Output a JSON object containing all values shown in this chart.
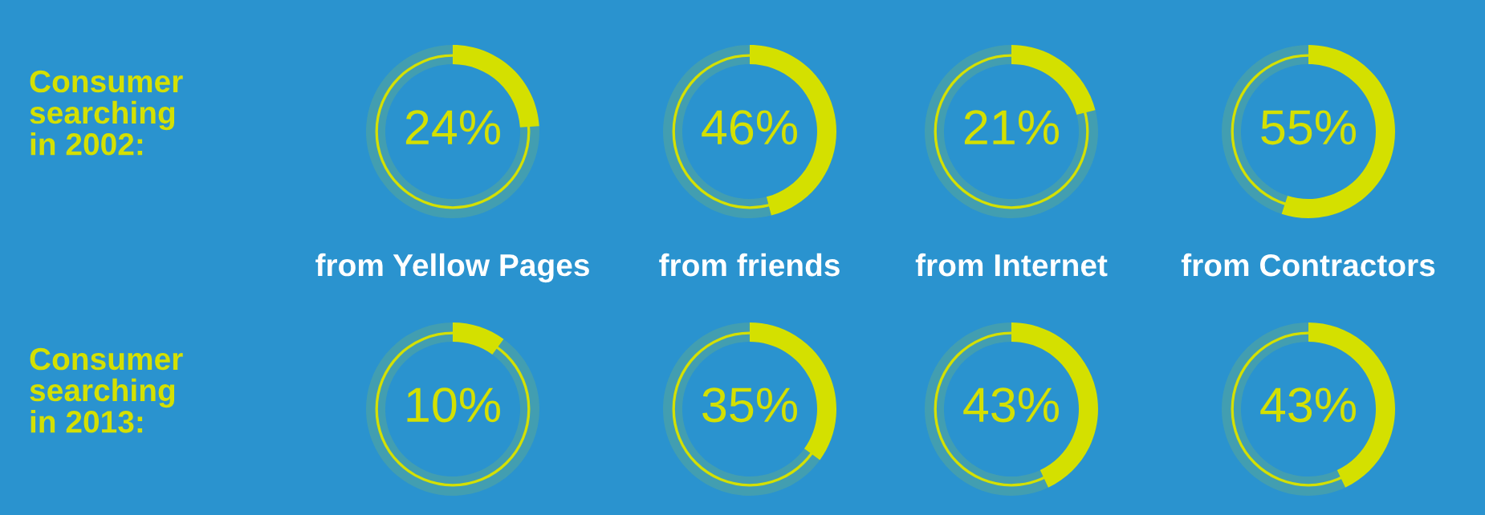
{
  "chart_data": [
    {
      "type": "donut",
      "ylabel": "Consumer\nsearching\nin 2002:",
      "xlabel": "from Yellow Pages",
      "categories": [
        null,
        null
      ],
      "values": [
        24,
        76
      ],
      "colors": [
        "#d4e000",
        "#d4e000"
      ],
      "annotations": [
        "24%"
      ]
    },
    {
      "type": "donut",
      "xlabel": "from friends",
      "categories": [
        null,
        null
      ],
      "values": [
        46,
        54
      ],
      "colors": [
        "#d4e000",
        "#d4e000"
      ],
      "annotations": [
        "46%"
      ]
    },
    {
      "type": "donut",
      "xlabel": "from Internet",
      "categories": [
        null,
        null
      ],
      "values": [
        21,
        79
      ],
      "colors": [
        "#d4e000",
        "#d4e000"
      ],
      "annotations": [
        "21%"
      ]
    },
    {
      "type": "donut",
      "xlabel": "from Contractors",
      "categories": [
        null,
        null
      ],
      "values": [
        55,
        45
      ],
      "colors": [
        "#d4e000",
        "#d4e000"
      ],
      "annotations": [
        "55%"
      ]
    },
    {
      "type": "donut",
      "ylabel": "Consumer\nsearching\nin 2013:",
      "categories": [
        null,
        null
      ],
      "values": [
        10,
        90
      ],
      "colors": [
        "#d4e000",
        "#d4e000"
      ],
      "annotations": [
        "10%"
      ]
    },
    {
      "type": "donut",
      "categories": [
        null,
        null
      ],
      "values": [
        35,
        65
      ],
      "colors": [
        "#d4e000",
        "#d4e000"
      ],
      "annotations": [
        "35%"
      ]
    },
    {
      "type": "donut",
      "categories": [
        null,
        null
      ],
      "values": [
        43,
        57
      ],
      "colors": [
        "#d4e000",
        "#d4e000"
      ],
      "annotations": [
        "43%"
      ]
    },
    {
      "type": "donut",
      "categories": [
        null,
        null
      ],
      "values": [
        43,
        57
      ],
      "colors": [
        "#d4e000",
        "#d4e000"
      ],
      "annotations": [
        "43%"
      ]
    }
  ]
}
